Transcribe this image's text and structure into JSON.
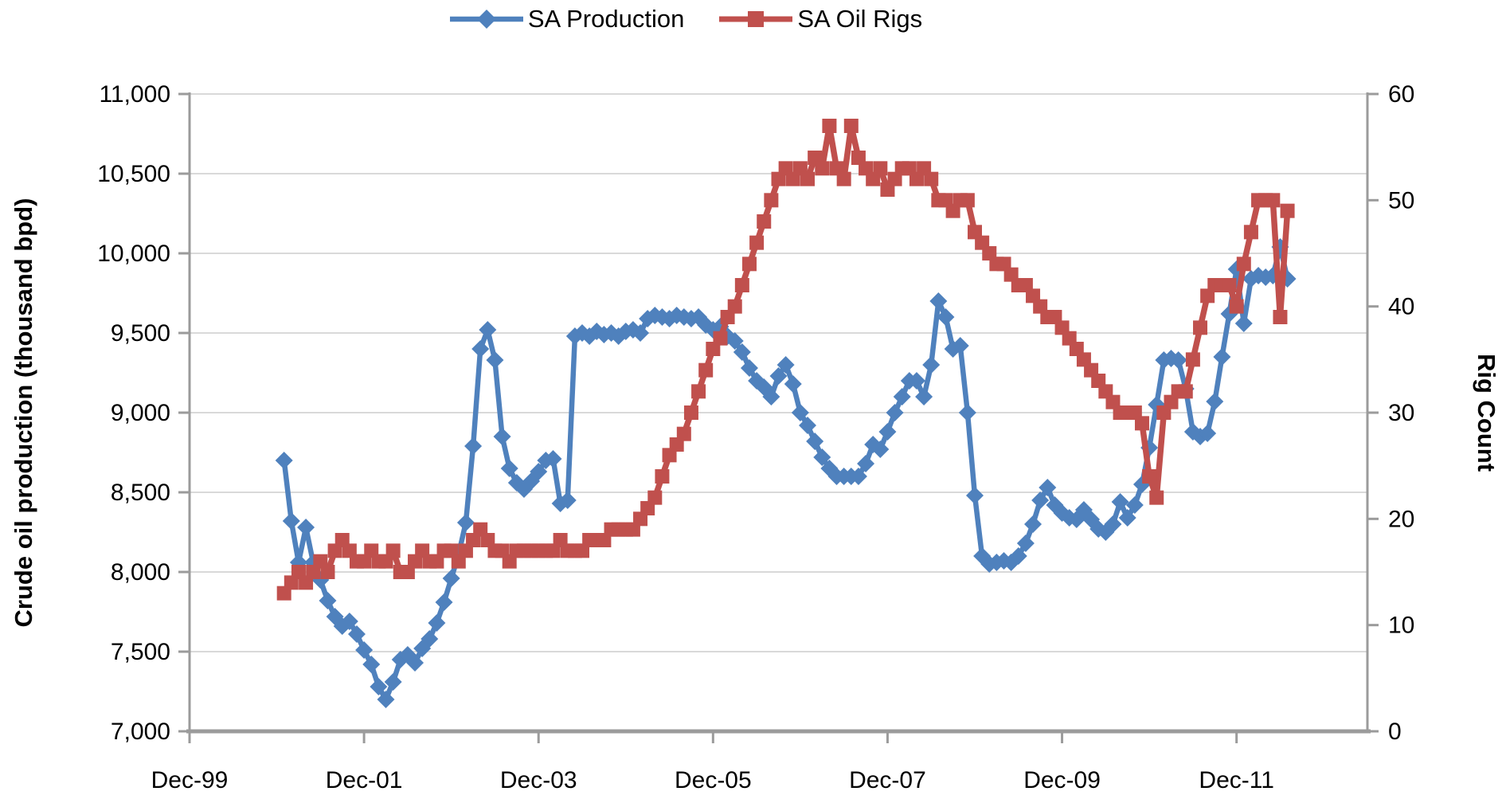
{
  "chart_data": {
    "type": "line",
    "title": "",
    "legend": {
      "position": "top-center",
      "entries": [
        "SA Production",
        "SA Oil Rigs"
      ]
    },
    "x_axis": {
      "unit": "month",
      "domain_months": [
        0,
        162
      ],
      "domain_note": "months since Dec-1999",
      "ticks": [
        {
          "m": 0,
          "label": "Dec-99"
        },
        {
          "m": 24,
          "label": "Dec-01"
        },
        {
          "m": 48,
          "label": "Dec-03"
        },
        {
          "m": 72,
          "label": "Dec-05"
        },
        {
          "m": 96,
          "label": "Dec-07"
        },
        {
          "m": 120,
          "label": "Dec-09"
        },
        {
          "m": 144,
          "label": "Dec-11"
        }
      ]
    },
    "y_left": {
      "label": "Crude oil production (thousand bpd)",
      "min": 7000,
      "max": 11000,
      "step": 500,
      "format": "thousands-comma"
    },
    "y_right": {
      "label": "Rig Count",
      "min": 0,
      "max": 60,
      "step": 10
    },
    "grid": "horizontal",
    "series": [
      {
        "name": "SA Production",
        "color": "#4F81BD",
        "marker": "diamond",
        "axis": "left",
        "start": "Jan-2001",
        "start_month_index": 13,
        "values": [
          8700,
          8320,
          8060,
          8280,
          8060,
          7950,
          7820,
          7720,
          7660,
          7690,
          7610,
          7510,
          7420,
          7280,
          7200,
          7310,
          7450,
          7480,
          7430,
          7520,
          7580,
          7680,
          7810,
          7960,
          8110,
          8310,
          8790,
          9400,
          9520,
          9330,
          8850,
          8650,
          8560,
          8520,
          8570,
          8630,
          8700,
          8710,
          8430,
          8450,
          9480,
          9500,
          9480,
          9510,
          9490,
          9500,
          9480,
          9510,
          9520,
          9500,
          9590,
          9610,
          9600,
          9590,
          9610,
          9600,
          9590,
          9600,
          9550,
          9520,
          9540,
          9480,
          9450,
          9380,
          9280,
          9200,
          9160,
          9100,
          9230,
          9300,
          9180,
          9000,
          8920,
          8820,
          8720,
          8650,
          8600,
          8600,
          8600,
          8600,
          8680,
          8800,
          8770,
          8880,
          9000,
          9100,
          9200,
          9200,
          9100,
          9300,
          9700,
          9600,
          9400,
          9420,
          9000,
          8480,
          8100,
          8050,
          8060,
          8070,
          8060,
          8100,
          8180,
          8300,
          8450,
          8530,
          8420,
          8370,
          8340,
          8330,
          8390,
          8330,
          8270,
          8250,
          8300,
          8440,
          8340,
          8420,
          8550,
          8780,
          9050,
          9330,
          9340,
          9330,
          9150,
          8880,
          8850,
          8870,
          9070,
          9350,
          9620,
          9900,
          9560,
          9840,
          9860,
          9850,
          9860,
          10040,
          9840
        ]
      },
      {
        "name": "SA Oil Rigs",
        "color": "#C0504D",
        "marker": "square",
        "axis": "right",
        "start": "Jan-2001",
        "start_month_index": 13,
        "values": [
          13,
          14,
          15,
          14,
          15,
          16,
          15,
          17,
          18,
          17,
          16,
          16,
          17,
          16,
          16,
          17,
          15,
          15,
          16,
          17,
          16,
          16,
          17,
          17,
          16,
          17,
          18,
          19,
          18,
          17,
          17,
          16,
          17,
          17,
          17,
          17,
          17,
          17,
          18,
          17,
          17,
          17,
          18,
          18,
          18,
          19,
          19,
          19,
          19,
          20,
          21,
          22,
          24,
          26,
          27,
          28,
          30,
          32,
          34,
          36,
          37,
          39,
          40,
          42,
          44,
          46,
          48,
          50,
          52,
          53,
          52,
          53,
          52,
          54,
          53,
          57,
          53,
          52,
          57,
          54,
          53,
          52,
          53,
          51,
          52,
          53,
          53,
          52,
          53,
          52,
          50,
          50,
          49,
          50,
          50,
          47,
          46,
          45,
          44,
          44,
          43,
          42,
          42,
          41,
          40,
          39,
          39,
          38,
          37,
          36,
          35,
          34,
          33,
          32,
          31,
          30,
          30,
          30,
          29,
          24,
          22,
          30,
          31,
          32,
          32,
          35,
          38,
          41,
          42,
          42,
          42,
          40,
          44,
          47,
          50,
          50,
          50,
          39,
          49
        ]
      }
    ],
    "colors": {
      "gridline": "#D9D9D9",
      "axis": "#9B9B9B",
      "text": "#000000",
      "background": "#FFFFFF"
    }
  }
}
